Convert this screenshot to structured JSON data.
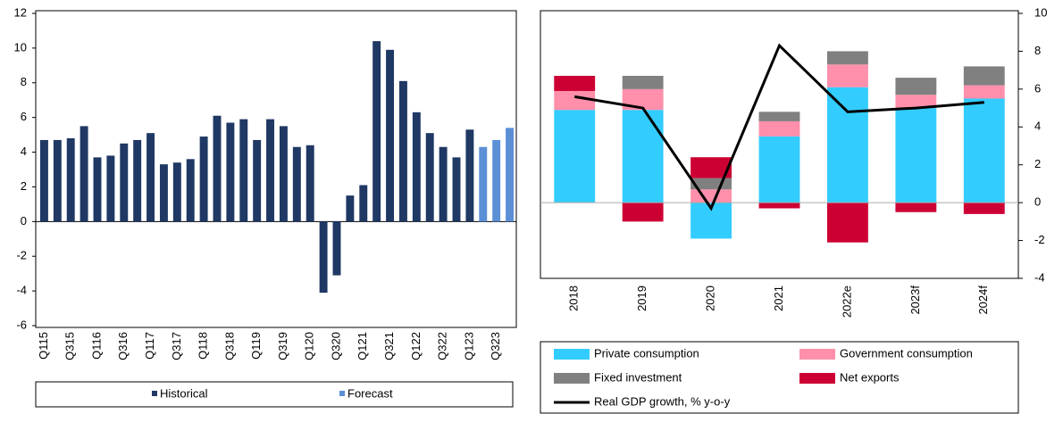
{
  "chart_data": [
    {
      "type": "bar",
      "categories": [
        "Q115",
        null,
        "Q315",
        null,
        "Q116",
        null,
        "Q316",
        null,
        "Q117",
        null,
        "Q317",
        null,
        "Q118",
        null,
        "Q318",
        null,
        "Q119",
        null,
        "Q319",
        null,
        "Q120",
        null,
        "Q320",
        null,
        "Q121",
        null,
        "Q321",
        null,
        "Q122",
        null,
        "Q322",
        null,
        "Q123",
        null,
        "Q323",
        null
      ],
      "series": [
        {
          "name": "Historical",
          "color": "#1f3864",
          "values": [
            4.7,
            4.7,
            4.8,
            5.5,
            3.7,
            3.8,
            4.5,
            4.7,
            5.1,
            3.3,
            3.4,
            3.6,
            4.9,
            6.1,
            5.7,
            5.9,
            4.7,
            5.9,
            5.5,
            4.3,
            4.4,
            -4.1,
            -3.1,
            1.5,
            2.1,
            10.4,
            9.9,
            8.1,
            6.3,
            5.1,
            4.3,
            3.7,
            5.3,
            null,
            null,
            null
          ]
        },
        {
          "name": "Forecast",
          "color": "#5b8fd6",
          "values": [
            null,
            null,
            null,
            null,
            null,
            null,
            null,
            null,
            null,
            null,
            null,
            null,
            null,
            null,
            null,
            null,
            null,
            null,
            null,
            null,
            null,
            null,
            null,
            null,
            null,
            null,
            null,
            null,
            null,
            null,
            null,
            null,
            null,
            4.3,
            4.7,
            5.4
          ]
        }
      ],
      "ylim": [
        -6,
        12
      ],
      "yticks": [
        -6,
        -4,
        -2,
        0,
        2,
        4,
        6,
        8,
        10,
        12
      ]
    },
    {
      "type": "stacked_bar_line",
      "categories": [
        "2018",
        "2019",
        "2020",
        "2021",
        "2022e",
        "2023f",
        "2024f"
      ],
      "series": [
        {
          "name": "Private consumption",
          "color": "#33ccff",
          "values": [
            4.9,
            4.9,
            -1.9,
            3.5,
            6.1,
            5.0,
            5.5
          ]
        },
        {
          "name": "Government consumption",
          "color": "#ff8fab",
          "values": [
            1.0,
            1.1,
            0.7,
            0.8,
            1.2,
            0.7,
            0.7
          ]
        },
        {
          "name": "Fixed investment",
          "color": "#808080",
          "values": [
            0,
            0.7,
            0.6,
            0.5,
            0.7,
            0.9,
            1.0
          ]
        },
        {
          "name": "Net exports",
          "color": "#cc0033",
          "values": [
            0.8,
            -1.0,
            1.1,
            -0.3,
            -2.1,
            -0.5,
            -0.6
          ]
        },
        {
          "name": "Real GDP growth, % y-o-y",
          "color": "#000000",
          "type": "line",
          "values": [
            5.6,
            5.0,
            -0.3,
            8.3,
            4.8,
            5.0,
            5.3
          ]
        }
      ],
      "ylim": [
        -4,
        10
      ],
      "yticks": [
        -4,
        -2,
        0,
        2,
        4,
        6,
        8,
        10
      ]
    }
  ]
}
